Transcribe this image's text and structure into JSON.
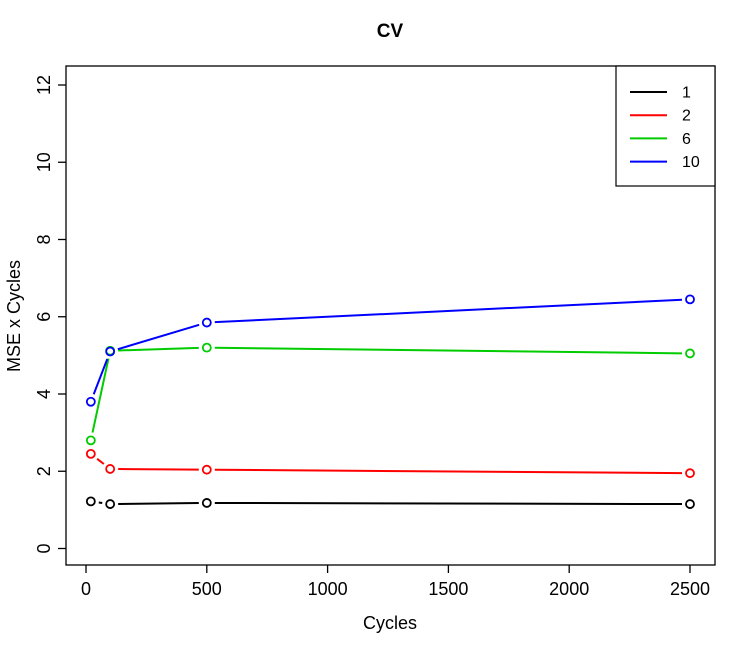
{
  "chart_data": {
    "type": "line",
    "title": "CV",
    "xlabel": "Cycles",
    "ylabel": "MSE x Cycles",
    "x_ticks": [
      0,
      500,
      1000,
      1500,
      2000,
      2500
    ],
    "y_ticks": [
      0,
      2,
      4,
      6,
      8,
      10,
      12
    ],
    "xlim": [
      -75,
      2600
    ],
    "ylim": [
      -0.45,
      12.5
    ],
    "grid": false,
    "marker": "open-circle",
    "line_type": "points-and-segments-with-gaps",
    "x": [
      20,
      100,
      500,
      2500
    ],
    "series": [
      {
        "name": "1",
        "color": "#000000",
        "values": [
          1.22,
          1.15,
          1.18,
          1.15
        ]
      },
      {
        "name": "2",
        "color": "#FF0000",
        "values": [
          2.45,
          2.06,
          2.04,
          1.95
        ]
      },
      {
        "name": "6",
        "color": "#00CC00",
        "values": [
          2.8,
          5.12,
          5.2,
          5.05
        ]
      },
      {
        "name": "10",
        "color": "#0000FF",
        "values": [
          3.8,
          5.1,
          5.85,
          6.45
        ]
      }
    ],
    "legend": {
      "position": "topright",
      "entries": [
        "1",
        "2",
        "6",
        "10"
      ]
    }
  }
}
